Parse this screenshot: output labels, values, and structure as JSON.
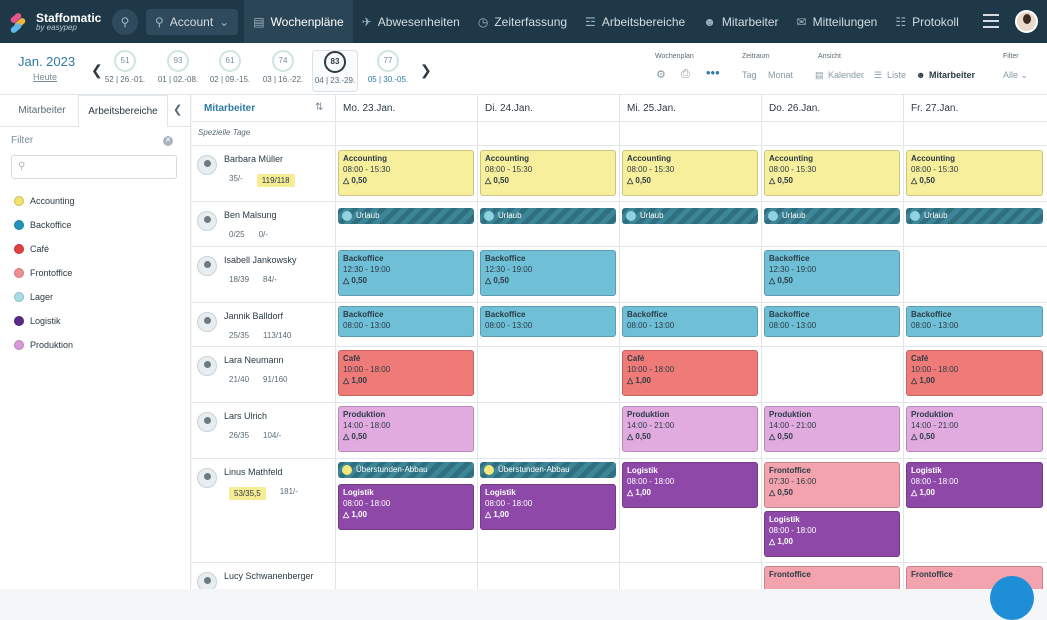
{
  "app": {
    "name": "Staffomatic",
    "sub": "by easypep"
  },
  "nav": [
    {
      "label": "Account"
    },
    {
      "label": "Wochenpläne"
    },
    {
      "label": "Abwesenheiten"
    },
    {
      "label": "Zeiterfassung"
    },
    {
      "label": "Arbeitsbereiche"
    },
    {
      "label": "Mitarbeiter"
    },
    {
      "label": "Mitteilungen"
    },
    {
      "label": "Protokoll"
    }
  ],
  "weekbar": {
    "month": "Jan. 2023",
    "today": "Heute",
    "weeks": [
      {
        "value": "51",
        "label": "52 | 26.-01."
      },
      {
        "value": "93",
        "label": "01 | 02.-08."
      },
      {
        "value": "61",
        "label": "02 | 09.-15."
      },
      {
        "value": "74",
        "label": "03 | 16.-22."
      },
      {
        "value": "83",
        "label": "04 | 23.-29."
      },
      {
        "value": "77",
        "label": "05 | 30.-05."
      }
    ],
    "wochenplan_title": "Wochenplan",
    "zeitraum_title": "Zeitraum",
    "zeitraum": [
      "Tag",
      "Monat"
    ],
    "ansicht_title": "Ansicht",
    "ansicht": [
      "Kalender",
      "Liste",
      "Mitarbeiter"
    ],
    "filter_title": "Filter",
    "filter_value": "Alle"
  },
  "sidebar": {
    "tabs": [
      "Mitarbeiter",
      "Arbeitsbereiche"
    ],
    "filter_label": "Filter",
    "areas": [
      {
        "label": "Accounting",
        "color": "#f3e36a"
      },
      {
        "label": "Backoffice",
        "color": "#1f95bd"
      },
      {
        "label": "Café",
        "color": "#e2403e"
      },
      {
        "label": "Frontoffice",
        "color": "#ef8f94"
      },
      {
        "label": "Lager",
        "color": "#a8dde8"
      },
      {
        "label": "Logistik",
        "color": "#5a2a86"
      },
      {
        "label": "Produktion",
        "color": "#d59bd8"
      }
    ]
  },
  "grid": {
    "emp_header": "Mitarbeiter",
    "days": [
      "Mo. 23.Jan.",
      "Di. 24.Jan.",
      "Mi. 25.Jan.",
      "Do. 26.Jan.",
      "Fr. 27.Jan."
    ],
    "special": "Spezielle Tage",
    "employees": [
      {
        "name": "Barbara Müller",
        "s1": "35/-",
        "s2": "119/118"
      },
      {
        "name": "Ben Malsung",
        "s1": "0/25",
        "s2": "0/-"
      },
      {
        "name": "Isabell Jankowsky",
        "s1": "18/39",
        "s2": "84/-"
      },
      {
        "name": "Jannik Balldorf",
        "s1": "25/35",
        "s2": "113/140"
      },
      {
        "name": "Lara Neumann",
        "s1": "21/40",
        "s2": "91/160"
      },
      {
        "name": "Lars Ulrich",
        "s1": "26/35",
        "s2": "104/-"
      },
      {
        "name": "Linus Mathfeld",
        "s1": "53/35,5",
        "s2": "181/-"
      },
      {
        "name": "Lucy Schwanenberger",
        "s1": "",
        "s2": ""
      }
    ],
    "shift_values": {
      "accounting": {
        "title": "Accounting",
        "hours": "08:00 - 15:30",
        "n": "0,50"
      },
      "urlaub": "Urlaub",
      "backoffice_late": {
        "title": "Backoffice",
        "hours": "12:30 - 19:00",
        "n": "0,50"
      },
      "backoffice_early": {
        "title": "Backoffice",
        "hours": "08:00 - 13:00"
      },
      "cafe": {
        "title": "Café",
        "hours": "10:00 - 18:00",
        "n": "1,00"
      },
      "prod_a": {
        "title": "Produktion",
        "hours": "14:00 - 18:00",
        "n": "0,50"
      },
      "prod_b": {
        "title": "Produktion",
        "hours": "14:00 - 21:00",
        "n": "0,50"
      },
      "ueberstunden": "Überstunden-Abbau",
      "logistik": {
        "title": "Logistik",
        "hours": "08:00 - 18:00",
        "n": "1,00"
      },
      "front": {
        "title": "Frontoffice",
        "hours": "07:30 - 16:00",
        "n": "0,50"
      },
      "front_title": "Frontoffice"
    }
  }
}
